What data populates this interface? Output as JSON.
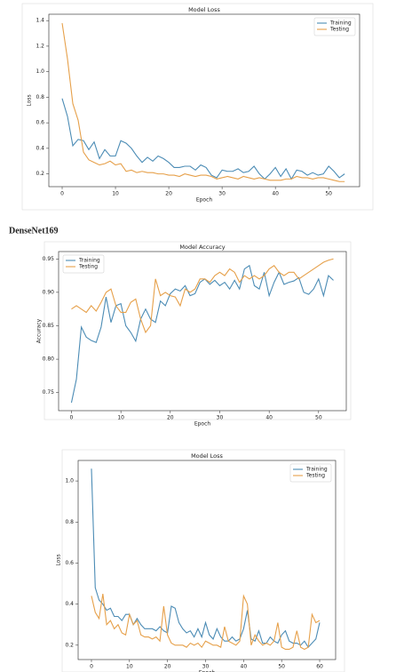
{
  "heading": "DenseNet169",
  "chart_data": [
    {
      "type": "line",
      "title": "Model Loss",
      "x_label": "Epoch",
      "y_label": "Loss",
      "x": [
        0,
        1,
        2,
        3,
        4,
        5,
        6,
        7,
        8,
        9,
        10,
        11,
        12,
        13,
        14,
        15,
        16,
        17,
        18,
        19,
        20,
        21,
        22,
        23,
        24,
        25,
        26,
        27,
        28,
        29,
        30,
        31,
        32,
        33,
        34,
        35,
        36,
        37,
        38,
        39,
        40,
        41,
        42,
        43,
        44,
        45,
        46,
        47,
        48,
        49,
        50,
        51,
        52,
        53
      ],
      "series": [
        {
          "name": "Training",
          "color": "#4c8cb5",
          "values": [
            0.79,
            0.65,
            0.42,
            0.47,
            0.46,
            0.39,
            0.45,
            0.32,
            0.39,
            0.34,
            0.34,
            0.46,
            0.44,
            0.4,
            0.34,
            0.29,
            0.33,
            0.3,
            0.34,
            0.32,
            0.29,
            0.25,
            0.25,
            0.26,
            0.26,
            0.23,
            0.27,
            0.25,
            0.19,
            0.17,
            0.23,
            0.22,
            0.22,
            0.24,
            0.21,
            0.22,
            0.26,
            0.2,
            0.16,
            0.2,
            0.25,
            0.18,
            0.24,
            0.16,
            0.23,
            0.22,
            0.19,
            0.21,
            0.19,
            0.2,
            0.26,
            0.22,
            0.17,
            0.2
          ]
        },
        {
          "name": "Testing",
          "color": "#e6a04a",
          "values": [
            1.38,
            1.1,
            0.75,
            0.62,
            0.37,
            0.31,
            0.29,
            0.27,
            0.28,
            0.3,
            0.27,
            0.28,
            0.22,
            0.23,
            0.21,
            0.22,
            0.21,
            0.21,
            0.2,
            0.2,
            0.19,
            0.19,
            0.18,
            0.2,
            0.19,
            0.18,
            0.19,
            0.19,
            0.18,
            0.16,
            0.17,
            0.18,
            0.17,
            0.16,
            0.18,
            0.17,
            0.16,
            0.17,
            0.16,
            0.15,
            0.15,
            0.15,
            0.16,
            0.16,
            0.18,
            0.17,
            0.17,
            0.16,
            0.17,
            0.17,
            0.16,
            0.15,
            0.14,
            0.14
          ]
        }
      ],
      "xlim": [
        -2.5,
        55.8
      ],
      "ylim": [
        0.1,
        1.45
      ],
      "xticks": [
        0,
        10,
        20,
        30,
        40,
        50
      ],
      "yticks": [
        0.2,
        0.4,
        0.6,
        0.8,
        {
          "value": 1,
          "label": "1.0"
        },
        1.2,
        1.4
      ],
      "legend": "upper right"
    },
    {
      "type": "line",
      "title": "Model Accuracy",
      "x_label": "Epoch",
      "y_label": "Accuracy",
      "x": [
        0,
        1,
        2,
        3,
        4,
        5,
        6,
        7,
        8,
        9,
        10,
        11,
        12,
        13,
        14,
        15,
        16,
        17,
        18,
        19,
        20,
        21,
        22,
        23,
        24,
        25,
        26,
        27,
        28,
        29,
        30,
        31,
        32,
        33,
        34,
        35,
        36,
        37,
        38,
        39,
        40,
        41,
        42,
        43,
        44,
        45,
        46,
        47,
        48,
        49,
        50,
        51,
        52,
        53
      ],
      "series": [
        {
          "name": "Training",
          "color": "#4c8cb5",
          "values": [
            0.735,
            0.77,
            0.848,
            0.833,
            0.828,
            0.825,
            0.848,
            0.893,
            0.855,
            0.88,
            0.883,
            0.85,
            0.84,
            0.827,
            0.86,
            0.875,
            0.86,
            0.855,
            0.887,
            0.88,
            0.898,
            0.905,
            0.902,
            0.91,
            0.895,
            0.898,
            0.915,
            0.92,
            0.912,
            0.918,
            0.91,
            0.915,
            0.905,
            0.918,
            0.905,
            0.935,
            0.94,
            0.91,
            0.905,
            0.93,
            0.895,
            0.915,
            0.93,
            0.912,
            0.915,
            0.917,
            0.922,
            0.9,
            0.897,
            0.905,
            0.92,
            0.895,
            0.925,
            0.918
          ]
        },
        {
          "name": "Testing",
          "color": "#e6a04a",
          "values": [
            0.875,
            0.88,
            0.875,
            0.87,
            0.88,
            0.872,
            0.885,
            0.9,
            0.905,
            0.88,
            0.87,
            0.87,
            0.885,
            0.89,
            0.86,
            0.84,
            0.85,
            0.92,
            0.895,
            0.9,
            0.895,
            0.893,
            0.88,
            0.905,
            0.9,
            0.905,
            0.92,
            0.92,
            0.915,
            0.925,
            0.93,
            0.925,
            0.935,
            0.93,
            0.915,
            0.925,
            0.92,
            0.925,
            0.92,
            0.925,
            0.935,
            0.94,
            0.93,
            0.925,
            0.93,
            0.93,
            0.92,
            0.925,
            0.93,
            0.935,
            0.94,
            0.945,
            0.948,
            0.95
          ]
        }
      ],
      "xlim": [
        -2.6,
        55.6
      ],
      "ylim": [
        0.723,
        0.961
      ],
      "xticks": [
        0,
        10,
        20,
        30,
        40,
        50
      ],
      "yticks": [
        0.75,
        {
          "value": 0.8,
          "label": "0.80"
        },
        0.85,
        {
          "value": 0.9,
          "label": "0.90"
        },
        0.95
      ],
      "legend": "upper left"
    },
    {
      "type": "line",
      "title": "Model Loss",
      "x_label": "Epoch",
      "y_label": "Loss",
      "x": [
        0,
        1,
        2,
        3,
        4,
        5,
        6,
        7,
        8,
        9,
        10,
        11,
        12,
        13,
        14,
        15,
        16,
        17,
        18,
        19,
        20,
        21,
        22,
        23,
        24,
        25,
        26,
        27,
        28,
        29,
        30,
        31,
        32,
        33,
        34,
        35,
        36,
        37,
        38,
        39,
        40,
        41,
        42,
        43,
        44,
        45,
        46,
        47,
        48,
        49,
        50,
        51,
        52,
        53,
        54,
        55,
        56,
        57,
        58,
        59,
        60
      ],
      "series": [
        {
          "name": "Training",
          "color": "#4c8cb5",
          "values": [
            1.06,
            0.48,
            0.42,
            0.4,
            0.37,
            0.38,
            0.34,
            0.34,
            0.32,
            0.35,
            0.35,
            0.3,
            0.33,
            0.3,
            0.28,
            0.28,
            0.28,
            0.27,
            0.29,
            0.27,
            0.26,
            0.39,
            0.38,
            0.31,
            0.28,
            0.26,
            0.27,
            0.24,
            0.28,
            0.24,
            0.31,
            0.25,
            0.23,
            0.28,
            0.24,
            0.22,
            0.22,
            0.24,
            0.22,
            0.23,
            0.28,
            0.37,
            0.23,
            0.22,
            0.27,
            0.21,
            0.21,
            0.24,
            0.22,
            0.21,
            0.25,
            0.27,
            0.22,
            0.21,
            0.21,
            0.2,
            0.22,
            0.19,
            0.21,
            0.23,
            0.31
          ]
        },
        {
          "name": "Testing",
          "color": "#e6a04a",
          "values": [
            0.44,
            0.36,
            0.33,
            0.45,
            0.3,
            0.32,
            0.28,
            0.3,
            0.26,
            0.25,
            0.35,
            0.3,
            0.32,
            0.25,
            0.24,
            0.24,
            0.23,
            0.24,
            0.22,
            0.39,
            0.25,
            0.21,
            0.2,
            0.2,
            0.2,
            0.19,
            0.21,
            0.2,
            0.21,
            0.19,
            0.22,
            0.21,
            0.2,
            0.2,
            0.19,
            0.29,
            0.22,
            0.21,
            0.2,
            0.22,
            0.44,
            0.4,
            0.2,
            0.25,
            0.22,
            0.2,
            0.21,
            0.2,
            0.22,
            0.31,
            0.19,
            0.18,
            0.18,
            0.19,
            0.27,
            0.19,
            0.18,
            0.19,
            0.35,
            0.31,
            0.32
          ]
        }
      ],
      "xlim": [
        -3.5,
        64.2
      ],
      "ylim": [
        0.13,
        1.1
      ],
      "xticks": [
        0,
        10,
        20,
        30,
        40,
        50,
        60
      ],
      "yticks": [
        0.2,
        0.4,
        0.6,
        0.8,
        {
          "value": 1,
          "label": "1.0"
        }
      ],
      "legend": "upper right"
    }
  ]
}
